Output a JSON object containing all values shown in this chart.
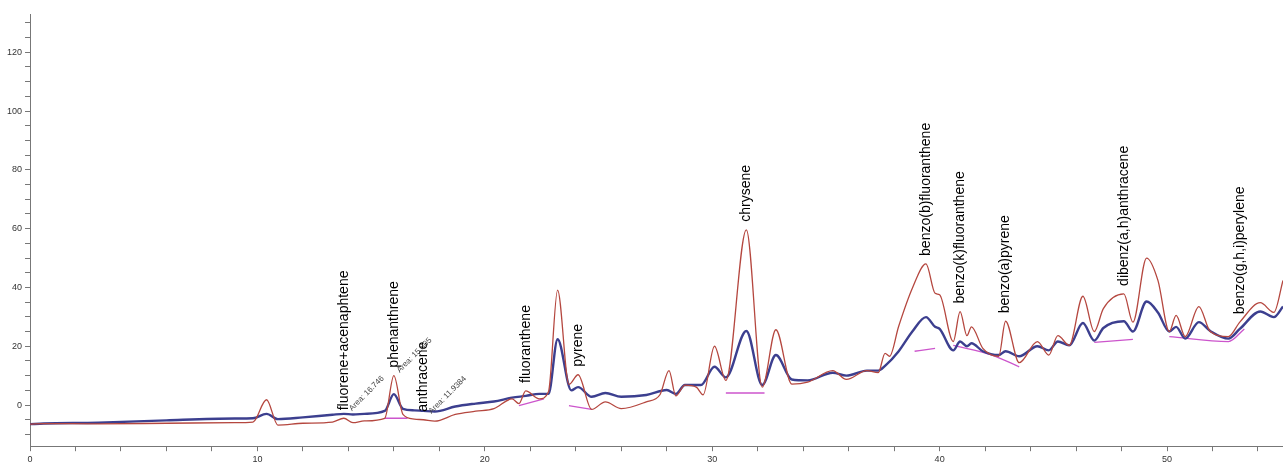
{
  "chart_data": {
    "type": "line",
    "marker": "none",
    "grid": false,
    "legend": false,
    "xlim": [
      0,
      55.1
    ],
    "ylim": [
      -14,
      133
    ],
    "xticks": [
      0,
      {
        "value": 2,
        "label": null
      },
      {
        "value": 4,
        "label": null
      },
      {
        "value": 6,
        "label": null
      },
      {
        "value": 8,
        "label": null
      },
      10,
      {
        "value": 12,
        "label": null
      },
      {
        "value": 14,
        "label": null
      },
      {
        "value": 16,
        "label": null
      },
      {
        "value": 18,
        "label": null
      },
      20,
      {
        "value": 22,
        "label": null
      },
      {
        "value": 24,
        "label": null
      },
      {
        "value": 26,
        "label": null
      },
      {
        "value": 28,
        "label": null
      },
      30,
      {
        "value": 32,
        "label": null
      },
      {
        "value": 34,
        "label": null
      },
      {
        "value": 36,
        "label": null
      },
      {
        "value": 38,
        "label": null
      },
      40,
      {
        "value": 42,
        "label": null
      },
      {
        "value": 44,
        "label": null
      },
      {
        "value": 46,
        "label": null
      },
      {
        "value": 48,
        "label": null
      },
      50,
      {
        "value": 52,
        "label": null
      },
      {
        "value": 54,
        "label": null
      }
    ],
    "yticks": [
      {
        "value": -10,
        "label": null
      },
      {
        "value": -5,
        "label": null
      },
      0,
      {
        "value": 5,
        "label": null
      },
      {
        "value": 10,
        "label": null
      },
      {
        "value": 15,
        "label": null
      },
      20,
      {
        "value": 25,
        "label": null
      },
      {
        "value": 30,
        "label": null
      },
      {
        "value": 35,
        "label": null
      },
      40,
      {
        "value": 45,
        "label": null
      },
      {
        "value": 50,
        "label": null
      },
      {
        "value": 55,
        "label": null
      },
      60,
      {
        "value": 65,
        "label": null
      },
      {
        "value": 70,
        "label": null
      },
      {
        "value": 75,
        "label": null
      },
      80,
      {
        "value": 85,
        "label": null
      },
      {
        "value": 90,
        "label": null
      },
      {
        "value": 95,
        "label": null
      },
      100,
      {
        "value": 105,
        "label": null
      },
      {
        "value": 110,
        "label": null
      },
      {
        "value": 115,
        "label": null
      },
      120,
      {
        "value": 125,
        "label": null
      },
      {
        "value": 130,
        "label": null
      }
    ],
    "series": [
      {
        "color": "#b5473f",
        "x": [
          0,
          0.6,
          3,
          6,
          9,
          9.8,
          10.4,
          10.9,
          12,
          13.3,
          13.8,
          14.2,
          14.7,
          15.6,
          16.0,
          16.4,
          16.9,
          17.3,
          17.8,
          18.7,
          19.6,
          20.4,
          21.2,
          21.5,
          21.8,
          22.4,
          22.8,
          23.2,
          23.7,
          24.1,
          24.7,
          25.3,
          26.0,
          27.1,
          27.7,
          28.1,
          28.4,
          28.8,
          29.3,
          29.6,
          30.1,
          30.6,
          31.5,
          32.2,
          32.8,
          33.5,
          34.2,
          35.3,
          35.9,
          36.8,
          37.3,
          37.6,
          37.8,
          38.2,
          38.8,
          39.4,
          39.8,
          40.0,
          40.6,
          40.9,
          41.2,
          41.4,
          41.9,
          42.6,
          42.9,
          43.5,
          44.3,
          44.8,
          45.2,
          45.7,
          46.3,
          46.8,
          47.2,
          48.1,
          48.5,
          49.1,
          49.6,
          50.1,
          50.4,
          50.8,
          51.4,
          51.9,
          52.7,
          53.2,
          54.1,
          54.7,
          55.1
        ],
        "values": [
          -6.5,
          -6.3,
          -6.4,
          -6.2,
          -6,
          -5.8,
          1.8,
          -6.8,
          -6.2,
          -5.8,
          -4.5,
          -6,
          -5.4,
          -4.5,
          10,
          -3.2,
          -4.8,
          -5,
          -5.5,
          -3.2,
          -2.1,
          -1.2,
          2.1,
          0.5,
          4.8,
          2.1,
          4.5,
          39.1,
          7,
          10.3,
          -1.5,
          1.1,
          -1.2,
          1.1,
          3.5,
          11.7,
          3.1,
          6.8,
          6.1,
          3.5,
          20,
          8.4,
          59.6,
          6.1,
          25.6,
          7.1,
          7.8,
          11.7,
          8.7,
          11.7,
          11,
          17.6,
          16.6,
          26.8,
          39.7,
          48,
          38,
          37.5,
          21.6,
          31.8,
          23.6,
          26.6,
          19.3,
          16.6,
          28.5,
          14.4,
          21.6,
          17,
          23.6,
          20.3,
          37,
          25,
          32.8,
          37.8,
          28.2,
          50,
          42.4,
          25,
          30.5,
          23.3,
          33.5,
          25,
          23.3,
          28.2,
          34.8,
          31.5,
          42.4
        ]
      },
      {
        "color": "#3c3f8f",
        "x": [
          0,
          0.6,
          3,
          6,
          9,
          9.8,
          10.4,
          10.9,
          12,
          13.3,
          13.8,
          14.2,
          14.7,
          15.6,
          16.0,
          16.4,
          16.9,
          17.3,
          17.8,
          18.7,
          19.6,
          20.4,
          21.2,
          21.8,
          22.4,
          22.8,
          23.2,
          23.8,
          24.1,
          24.7,
          25.3,
          26.0,
          27.1,
          28.0,
          28.4,
          28.8,
          29.5,
          30.1,
          30.6,
          31.5,
          32.2,
          32.8,
          33.5,
          34.2,
          35.3,
          35.9,
          36.8,
          37.3,
          37.6,
          38.2,
          38.8,
          39.4,
          39.8,
          40.0,
          40.6,
          40.9,
          41.2,
          41.4,
          41.9,
          42.6,
          42.9,
          43.5,
          44.3,
          44.8,
          45.2,
          45.7,
          46.3,
          46.8,
          47.2,
          48.1,
          48.5,
          49.1,
          49.6,
          50.1,
          50.4,
          50.8,
          51.4,
          51.9,
          52.7,
          53.2,
          54.1,
          54.7,
          55.1
        ],
        "values": [
          -6.5,
          -6.3,
          -6,
          -5.2,
          -4.6,
          -4.5,
          -3,
          -4.8,
          -4.2,
          -3.3,
          -3,
          -3.2,
          -3,
          -2,
          3.7,
          -1.3,
          -1.8,
          -2,
          -2.2,
          -0.5,
          0.5,
          1.2,
          2.5,
          3.1,
          3.8,
          3.8,
          22.4,
          5,
          6.1,
          2.8,
          4.1,
          2.8,
          3.4,
          5.1,
          3.8,
          6.8,
          6.8,
          13,
          9.4,
          25.2,
          6.8,
          17,
          8.7,
          8.4,
          11,
          10,
          11.7,
          11.7,
          13.3,
          18.3,
          25,
          29.9,
          26.6,
          25.9,
          18.6,
          21.6,
          20,
          21,
          18.3,
          17,
          18.3,
          16.6,
          20,
          18.6,
          21.6,
          20.3,
          27.9,
          21.9,
          26.2,
          28.5,
          25,
          35.2,
          31.5,
          25,
          26.6,
          22.6,
          28.2,
          25.2,
          22.6,
          25.9,
          31.8,
          29.9,
          33.5
        ]
      },
      {
        "color": "#cc55cc",
        "x": [
          15.6,
          16.6
        ],
        "values": [
          -4.5,
          -4.5
        ]
      },
      {
        "color": "#cc55cc",
        "x": [
          21.5,
          22.6
        ],
        "values": [
          -0.2,
          2.1
        ]
      },
      {
        "color": "#cc55cc",
        "x": [
          23.7,
          24.7
        ],
        "values": [
          -0.2,
          -1.5
        ]
      },
      {
        "color": "#cc55cc",
        "x": [
          30.6,
          32.3
        ],
        "values": [
          4.1,
          4.1
        ]
      },
      {
        "color": "#cc55cc",
        "x": [
          38.9,
          39.8
        ],
        "values": [
          18.3,
          19.3
        ]
      },
      {
        "color": "#cc55cc",
        "x": [
          40.6,
          42.3,
          43.5
        ],
        "values": [
          20.3,
          17,
          13
        ]
      },
      {
        "color": "#cc55cc",
        "x": [
          46.8,
          48.5
        ],
        "values": [
          21.3,
          22.3
        ]
      },
      {
        "color": "#cc55cc",
        "x": [
          50.1,
          52.7,
          53.4
        ],
        "values": [
          23.3,
          21.6,
          25.9
        ]
      }
    ],
    "annotations": [
      {
        "text": "fluorene+acenaphtene",
        "x": 13.8,
        "y": -4.5
      },
      {
        "text": "phenanthrene",
        "x": 16.0,
        "y": 10
      },
      {
        "text": "anthracene",
        "x": 17.3,
        "y": -5
      },
      {
        "text": "fluoranthene",
        "x": 21.8,
        "y": 4.8
      },
      {
        "text": "pyrene",
        "x": 24.1,
        "y": 10.3
      },
      {
        "text": "chrysene",
        "x": 31.5,
        "y": 59.6
      },
      {
        "text": "benzo(b)fluoranthene",
        "x": 39.4,
        "y": 48
      },
      {
        "text": "benzo(k)fluoranthene",
        "x": 40.9,
        "y": 31.8
      },
      {
        "text": "benzo(a)pyrene",
        "x": 42.9,
        "y": 28.5
      },
      {
        "text": "dibenz(a,h)anthracene",
        "x": 48.1,
        "y": 37.8
      },
      {
        "text": "benzo(g,h,i)perylene",
        "x": 53.2,
        "y": 28.2
      },
      {
        "text": "Area: 16.746",
        "x": 13.9,
        "y": -3
      },
      {
        "text": "Area: 15.805",
        "x": 16.0,
        "y": 10
      },
      {
        "text": "Area: 11.9384",
        "x": 17.4,
        "y": -4
      }
    ]
  }
}
